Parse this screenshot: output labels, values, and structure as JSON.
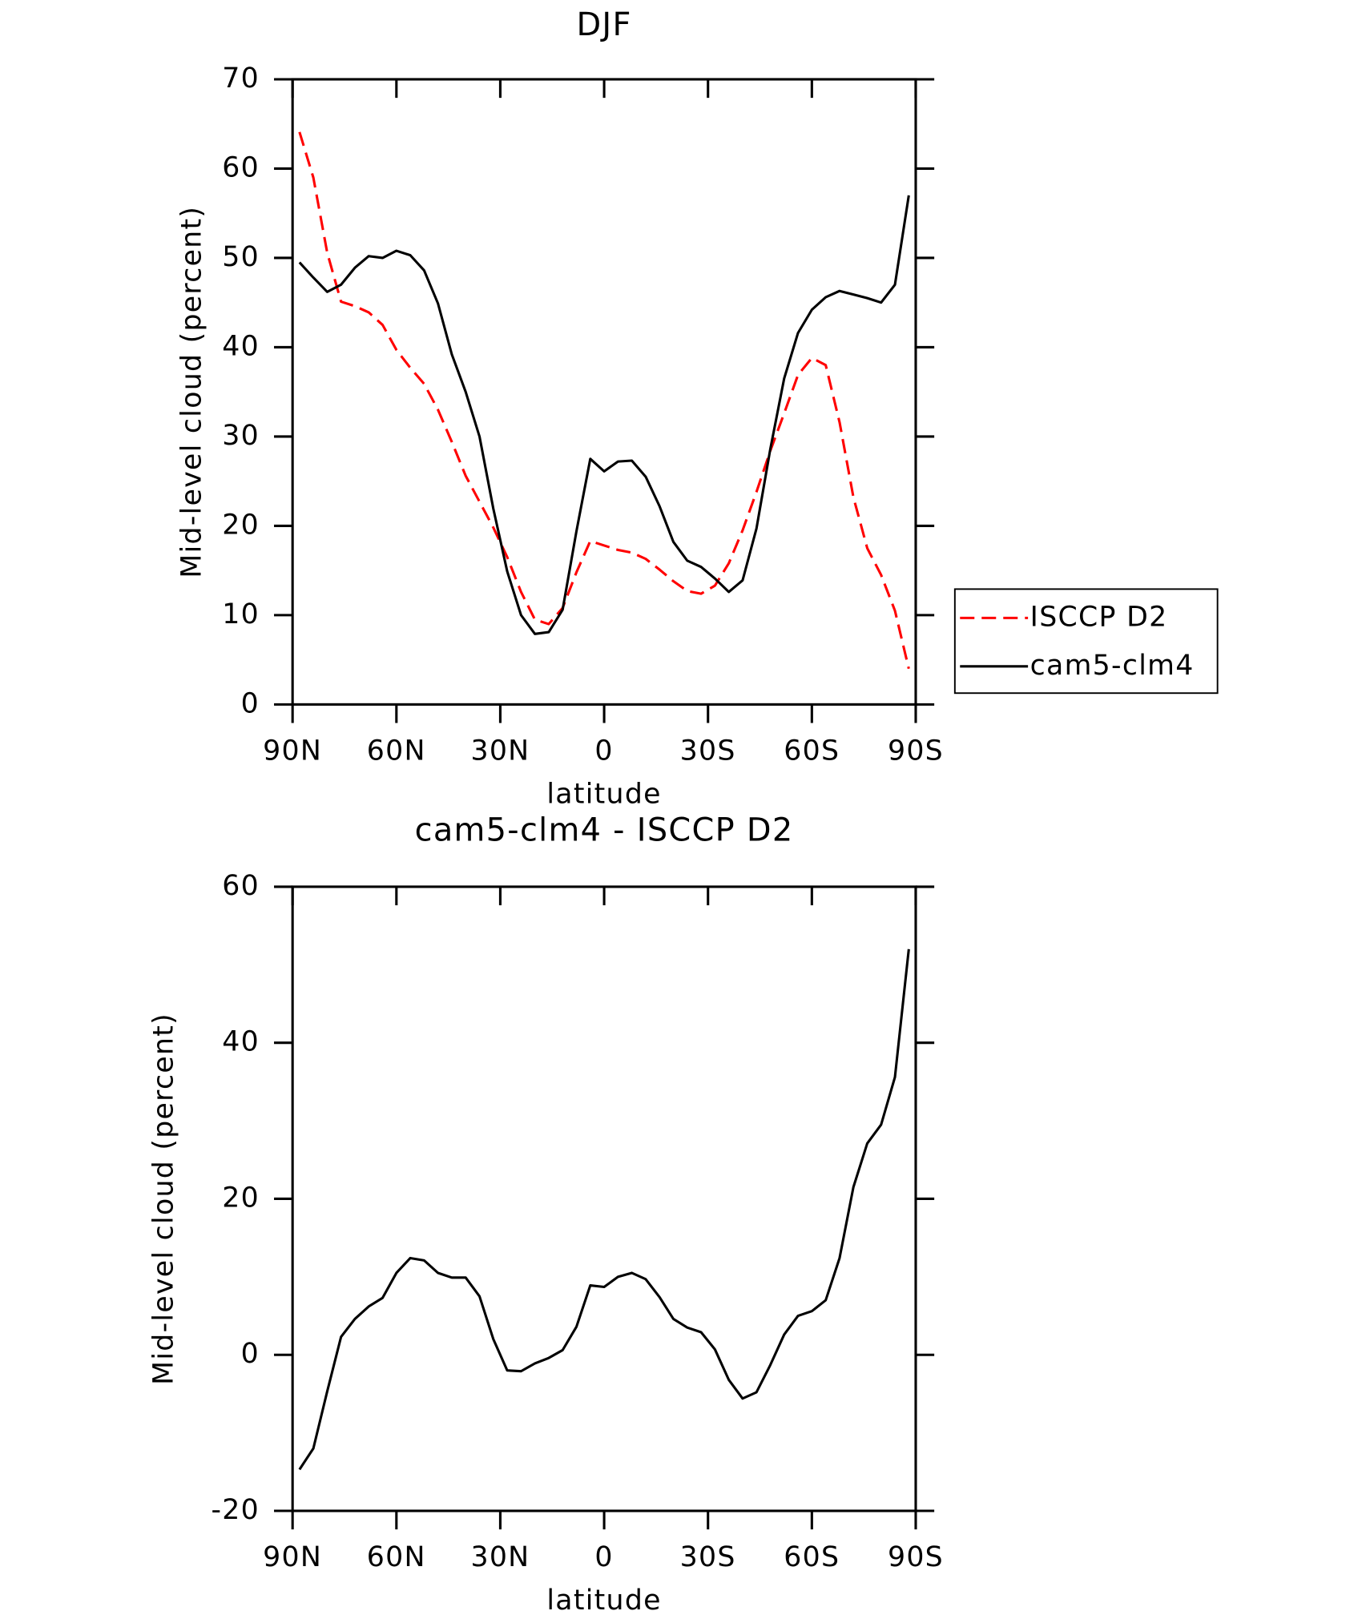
{
  "chart_data": [
    {
      "type": "line",
      "title": "DJF",
      "xlabel": "latitude",
      "ylabel": "Mid-level cloud (percent)",
      "x": [
        88,
        84,
        80,
        76,
        72,
        68,
        64,
        60,
        56,
        52,
        48,
        44,
        40,
        36,
        32,
        28,
        24,
        20,
        16,
        12,
        8,
        4,
        0,
        -4,
        -8,
        -12,
        -16,
        -20,
        -24,
        -28,
        -32,
        -36,
        -40,
        -44,
        -48,
        -52,
        -56,
        -60,
        -64,
        -68,
        -72,
        -76,
        -80,
        -84,
        -88
      ],
      "series": [
        {
          "name": "ISCCP D2",
          "color": "#ff0000",
          "line_style": "dashed",
          "values": [
            64.1,
            59,
            50.6,
            45.1,
            44.6,
            43.9,
            42.5,
            39.7,
            37.7,
            35.9,
            33,
            29.4,
            25.6,
            22.7,
            19.8,
            16.5,
            12.6,
            9.5,
            9,
            10.8,
            14.8,
            18.3,
            17.8,
            17.3,
            17,
            16.3,
            15.1,
            13.8,
            12.7,
            12.4,
            13.3,
            15.8,
            19.5,
            23.8,
            28.4,
            32.6,
            36.9,
            38.8,
            38,
            31.6,
            23.2,
            17.5,
            14.5,
            10.5,
            4
          ]
        },
        {
          "name": "cam5-clm4",
          "color": "#000000",
          "line_style": "solid",
          "values": [
            49.5,
            47.8,
            46.2,
            47,
            48.9,
            50.2,
            50,
            50.8,
            50.3,
            48.6,
            44.9,
            39.2,
            35,
            30,
            21.9,
            14.9,
            10,
            7.9,
            8.1,
            10.6,
            19.4,
            27.5,
            26.1,
            27.2,
            27.3,
            25.5,
            22.2,
            18.2,
            16.1,
            15.4,
            14.1,
            12.6,
            13.9,
            19.7,
            28.6,
            36.5,
            41.6,
            44.2,
            45.6,
            46.3,
            45.9,
            45.5,
            45,
            47,
            57
          ]
        }
      ],
      "xlim": [
        90,
        -90
      ],
      "xticks": [
        {
          "value": 90,
          "label": "90N"
        },
        {
          "value": 60,
          "label": "60N"
        },
        {
          "value": 30,
          "label": "30N"
        },
        0,
        {
          "value": -30,
          "label": "30S"
        },
        {
          "value": -60,
          "label": "60S"
        },
        {
          "value": -90,
          "label": "90S"
        }
      ],
      "ylim": [
        0,
        70
      ],
      "yticks": [
        0,
        10,
        20,
        30,
        40,
        50,
        60,
        70
      ],
      "grid": false,
      "legend": "right"
    },
    {
      "type": "line",
      "title": "cam5-clm4 - ISCCP D2",
      "xlabel": "latitude",
      "ylabel": "Mid-level cloud (percent)",
      "x": [
        88,
        84,
        80,
        76,
        72,
        68,
        64,
        60,
        56,
        52,
        48,
        44,
        40,
        36,
        32,
        28,
        24,
        20,
        16,
        12,
        8,
        4,
        0,
        -4,
        -8,
        -12,
        -16,
        -20,
        -24,
        -28,
        -32,
        -36,
        -40,
        -44,
        -48,
        -52,
        -56,
        -60,
        -64,
        -68,
        -72,
        -76,
        -80,
        -84,
        -88
      ],
      "series": [
        {
          "color": "#000000",
          "line_style": "solid",
          "values": [
            -14.7,
            -12,
            -4.7,
            2.3,
            4.6,
            6.2,
            7.3,
            10.5,
            12.4,
            12.1,
            10.5,
            9.9,
            9.9,
            7.5,
            2,
            -2,
            -2.1,
            -1.1,
            -0.4,
            0.6,
            3.6,
            8.9,
            8.7,
            10,
            10.5,
            9.7,
            7.4,
            4.6,
            3.5,
            2.9,
            0.7,
            -3.2,
            -5.6,
            -4.8,
            -1.3,
            2.6,
            5,
            5.6,
            7,
            12.4,
            21.5,
            27.1,
            29.5,
            35.6,
            52
          ]
        }
      ],
      "xlim": [
        90,
        -90
      ],
      "xticks": [
        {
          "value": 90,
          "label": "90N"
        },
        {
          "value": 60,
          "label": "60N"
        },
        {
          "value": 30,
          "label": "30N"
        },
        0,
        {
          "value": -30,
          "label": "30S"
        },
        {
          "value": -60,
          "label": "60S"
        },
        {
          "value": -90,
          "label": "90S"
        }
      ],
      "ylim": [
        -20,
        60
      ],
      "yticks": [
        -20,
        0,
        20,
        40,
        60
      ],
      "grid": false
    }
  ]
}
